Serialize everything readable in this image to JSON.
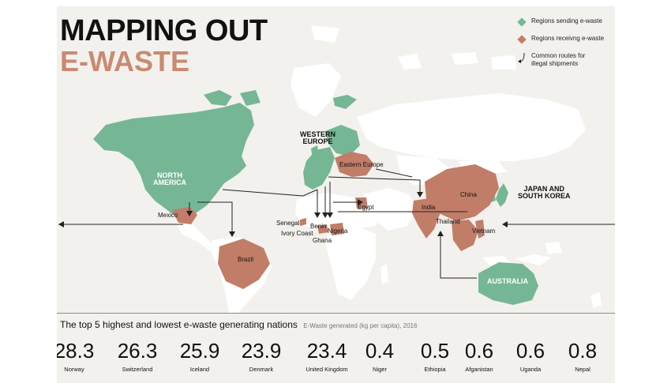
{
  "title": {
    "line1": "MAPPING OUT",
    "line2": "E-WASTE"
  },
  "colors": {
    "sending": "#75b795",
    "receiving": "#c17d68",
    "land": "#ffffff",
    "background": "#f3f1ed"
  },
  "legend": {
    "sending": "Regions sending e-waste",
    "receiving": "Regions receivng e-waste",
    "routes_line1": "Common routes for",
    "routes_line2": "illegal shipments"
  },
  "regions": {
    "north_america_1": "NORTH",
    "north_america_2": "AMERICA",
    "western_europe_1": "WESTERN",
    "western_europe_2": "EUROPE",
    "japan_korea_1": "JAPAN AND",
    "japan_korea_2": "SOUTH KOREA",
    "australia": "AUSTRALIA"
  },
  "places": {
    "mexico": "Mexico",
    "brazil": "Brazil",
    "eastern_europe": "Eastern Europe",
    "egypt": "Egypt",
    "senegal": "Senegal",
    "benin": "Benin",
    "ivory_coast": "Ivory Coast",
    "nigeria": "Nigeria",
    "ghana": "Ghana",
    "india": "India",
    "china": "China",
    "thailand": "Thailand",
    "vietnam": "Vietnam"
  },
  "stats": {
    "title": "The top 5 highest and lowest e-waste generating nations",
    "subtitle": "E-Waste generated (kg per capita), 2016",
    "items": [
      {
        "value": "28.3",
        "country": "Norway"
      },
      {
        "value": "26.3",
        "country": "Switzerland"
      },
      {
        "value": "25.9",
        "country": "Iceland"
      },
      {
        "value": "23.9",
        "country": "Denmark"
      },
      {
        "value": "23.4",
        "country": "United Kingdom"
      },
      {
        "value": "0.4",
        "country": "Niger"
      },
      {
        "value": "0.5",
        "country": "Ethiopia"
      },
      {
        "value": "0.6",
        "country": "Afganistan"
      },
      {
        "value": "0.6",
        "country": "Uganda"
      },
      {
        "value": "0.8",
        "country": "Nepal"
      }
    ]
  }
}
